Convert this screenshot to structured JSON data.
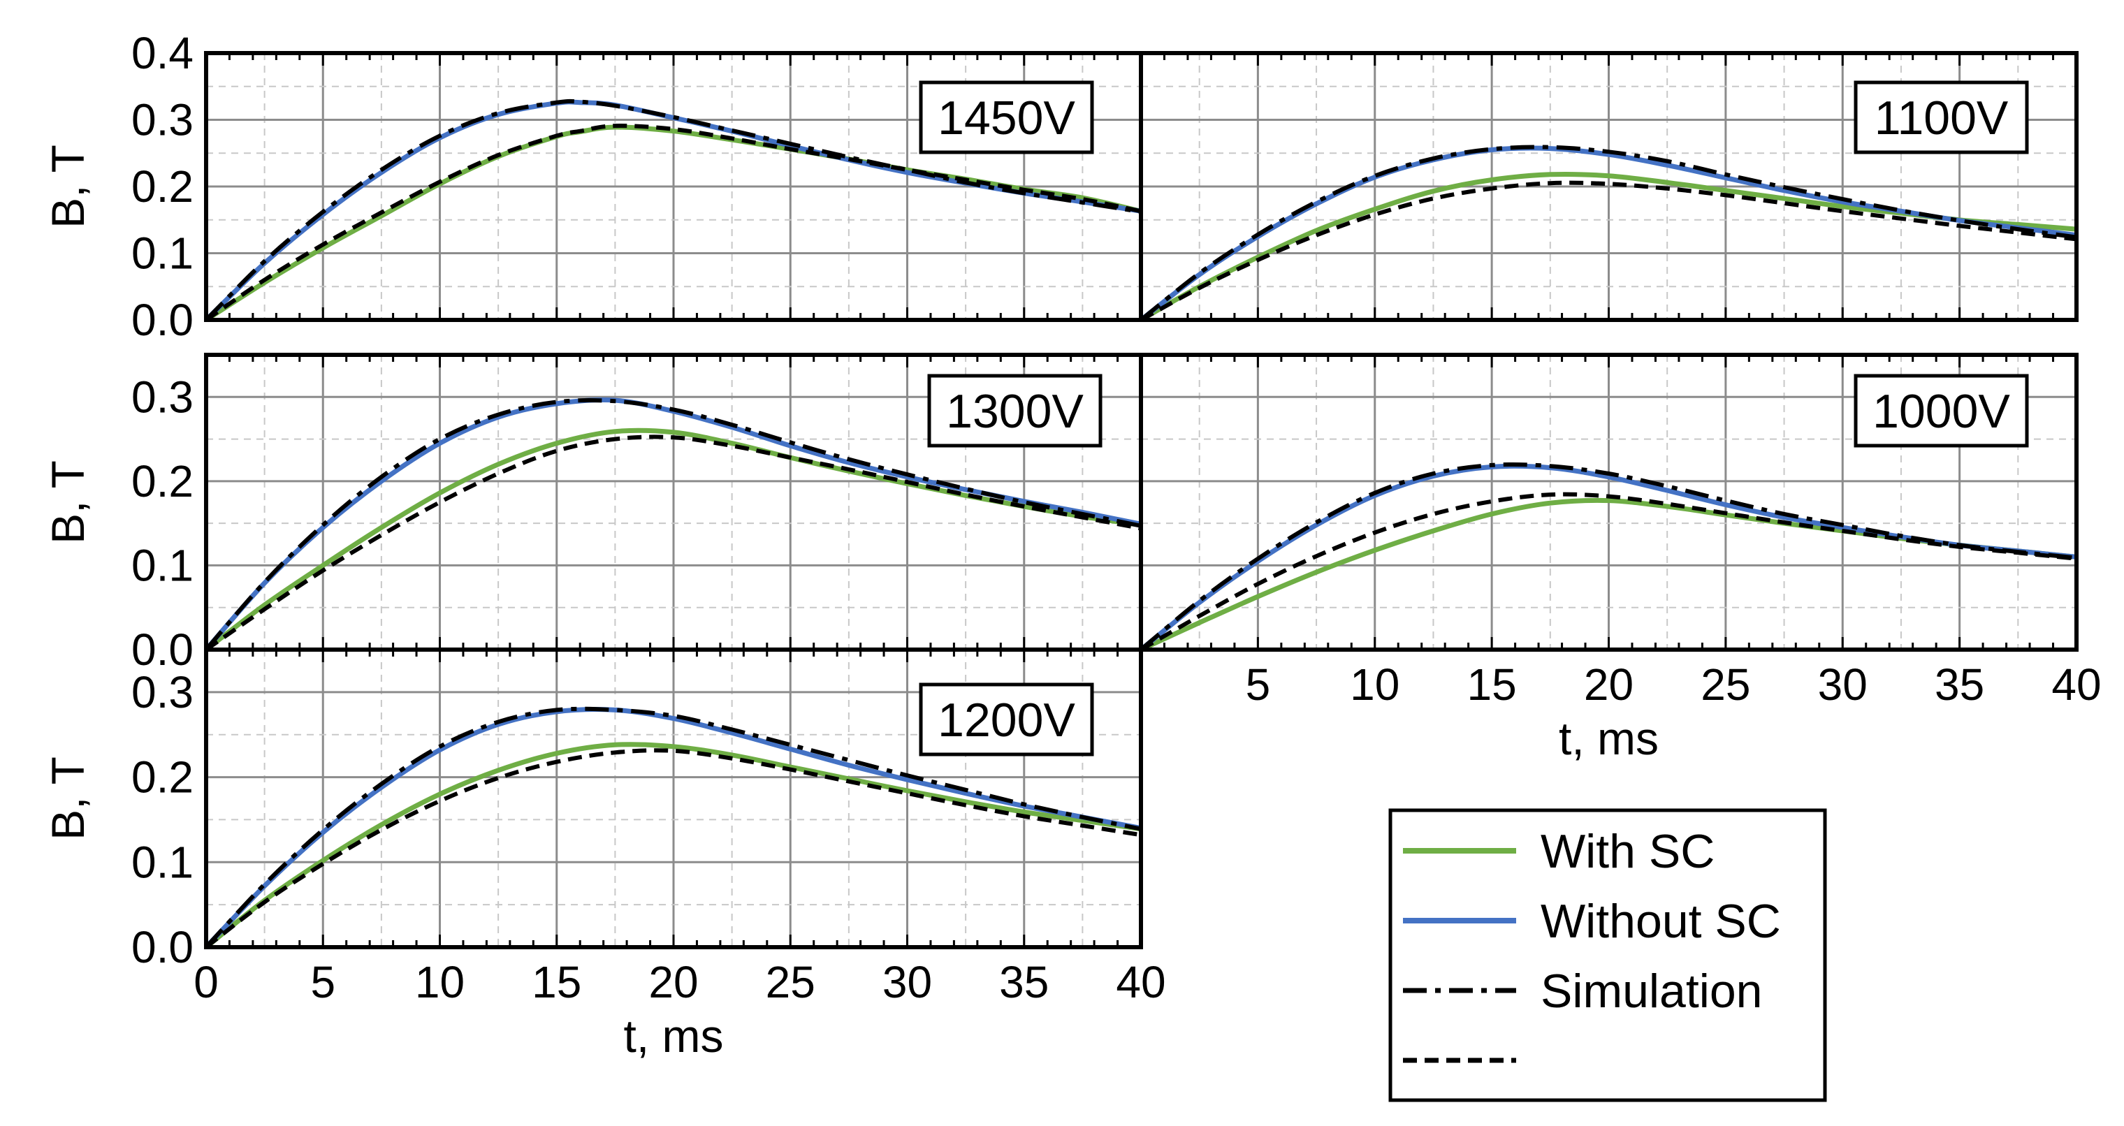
{
  "chart_data": [
    {
      "type": "line",
      "panel": "1450V",
      "label": "1450V",
      "xlabel": "",
      "ylabel": "B, T",
      "xlim": [
        0,
        40
      ],
      "ylim": [
        0,
        0.4
      ],
      "yticks": [
        "0.0",
        "0.1",
        "0.2",
        "0.3",
        "0.4"
      ],
      "xticks": [],
      "x": [
        0,
        2.5,
        5,
        7.5,
        10,
        12.5,
        15,
        16,
        17.5,
        20,
        22.5,
        25,
        27.5,
        30,
        32.5,
        35,
        37.5,
        40
      ],
      "series": [
        {
          "name": "With SC",
          "style": "green",
          "values": [
            0,
            0.056,
            0.108,
            0.156,
            0.204,
            0.245,
            0.275,
            0.282,
            0.289,
            0.283,
            0.27,
            0.256,
            0.241,
            0.225,
            0.211,
            0.196,
            0.183,
            0.163
          ]
        },
        {
          "name": "Without SC",
          "style": "blue",
          "values": [
            0,
            0.085,
            0.158,
            0.221,
            0.273,
            0.308,
            0.325,
            0.326,
            0.322,
            0.303,
            0.283,
            0.261,
            0.24,
            0.221,
            0.205,
            0.19,
            0.177,
            0.163
          ]
        },
        {
          "name": "Simulation",
          "style": "dashdot",
          "values": [
            0,
            0.088,
            0.162,
            0.225,
            0.276,
            0.31,
            0.326,
            0.327,
            0.321,
            0.304,
            0.284,
            0.264,
            0.244,
            0.225,
            0.206,
            0.19,
            0.176,
            0.162
          ]
        },
        {
          "name": "",
          "style": "dash",
          "values": [
            0,
            0.06,
            0.113,
            0.161,
            0.207,
            0.247,
            0.276,
            0.283,
            0.291,
            0.286,
            0.272,
            0.256,
            0.241,
            0.225,
            0.21,
            0.195,
            0.181,
            0.163
          ]
        }
      ]
    },
    {
      "type": "line",
      "panel": "1100V",
      "label": "1100V",
      "xlabel": "",
      "ylabel": "",
      "xlim": [
        0,
        40
      ],
      "ylim": [
        0,
        0.4
      ],
      "yticks": [],
      "xticks": [],
      "x": [
        0,
        2.5,
        5,
        7.5,
        10,
        12.5,
        15,
        17.5,
        20,
        22.5,
        25,
        27.5,
        30,
        32.5,
        35,
        37.5,
        40
      ],
      "series": [
        {
          "name": "With SC",
          "style": "green",
          "values": [
            0,
            0.05,
            0.094,
            0.134,
            0.166,
            0.193,
            0.21,
            0.218,
            0.216,
            0.206,
            0.194,
            0.182,
            0.17,
            0.16,
            0.15,
            0.143,
            0.136
          ]
        },
        {
          "name": "Without SC",
          "style": "blue",
          "values": [
            0,
            0.068,
            0.125,
            0.174,
            0.214,
            0.24,
            0.255,
            0.257,
            0.248,
            0.232,
            0.213,
            0.194,
            0.177,
            0.163,
            0.149,
            0.138,
            0.127
          ]
        },
        {
          "name": "Simulation",
          "style": "dashdot",
          "values": [
            0,
            0.07,
            0.128,
            0.177,
            0.216,
            0.242,
            0.256,
            0.259,
            0.252,
            0.238,
            0.218,
            0.199,
            0.181,
            0.164,
            0.149,
            0.136,
            0.124
          ]
        },
        {
          "name": "",
          "style": "dash",
          "values": [
            0,
            0.048,
            0.09,
            0.127,
            0.158,
            0.182,
            0.197,
            0.205,
            0.204,
            0.197,
            0.187,
            0.175,
            0.163,
            0.152,
            0.141,
            0.131,
            0.121
          ]
        }
      ]
    },
    {
      "type": "line",
      "panel": "1300V",
      "label": "1300V",
      "xlabel": "",
      "ylabel": "B, T",
      "xlim": [
        0,
        40
      ],
      "ylim": [
        0,
        0.35
      ],
      "yticks": [
        "0.0",
        "0.1",
        "0.2",
        "0.3"
      ],
      "xticks": [],
      "x": [
        0,
        2.5,
        5,
        7.5,
        10,
        12.5,
        15,
        17.5,
        20,
        22.5,
        25,
        27.5,
        30,
        32.5,
        35,
        37.5,
        40
      ],
      "series": [
        {
          "name": "With SC",
          "style": "green",
          "values": [
            0,
            0.053,
            0.1,
            0.145,
            0.186,
            0.22,
            0.245,
            0.259,
            0.258,
            0.245,
            0.228,
            0.212,
            0.197,
            0.183,
            0.17,
            0.158,
            0.148
          ]
        },
        {
          "name": "Without SC",
          "style": "blue",
          "values": [
            0,
            0.079,
            0.145,
            0.2,
            0.245,
            0.276,
            0.292,
            0.296,
            0.283,
            0.264,
            0.242,
            0.222,
            0.205,
            0.19,
            0.176,
            0.163,
            0.149
          ]
        },
        {
          "name": "Simulation",
          "style": "dashdot",
          "values": [
            0,
            0.08,
            0.148,
            0.205,
            0.25,
            0.279,
            0.294,
            0.295,
            0.285,
            0.267,
            0.246,
            0.226,
            0.208,
            0.191,
            0.175,
            0.161,
            0.147
          ]
        },
        {
          "name": "",
          "style": "dash",
          "values": [
            0,
            0.048,
            0.094,
            0.136,
            0.175,
            0.209,
            0.236,
            0.25,
            0.252,
            0.242,
            0.228,
            0.214,
            0.199,
            0.184,
            0.17,
            0.157,
            0.144
          ]
        }
      ]
    },
    {
      "type": "line",
      "panel": "1000V",
      "label": "1000V",
      "xlabel": "t, ms",
      "ylabel": "",
      "xlim": [
        0,
        40
      ],
      "ylim": [
        0,
        0.35
      ],
      "yticks": [],
      "xticks": [
        "5",
        "10",
        "15",
        "20",
        "25",
        "30",
        "35",
        "40"
      ],
      "x": [
        0,
        2.5,
        5,
        7.5,
        10,
        12.5,
        15,
        17.5,
        20,
        22.5,
        25,
        27.5,
        30,
        32.5,
        35,
        37.5,
        40
      ],
      "series": [
        {
          "name": "With SC",
          "style": "green",
          "values": [
            0,
            0.032,
            0.063,
            0.092,
            0.118,
            0.141,
            0.161,
            0.174,
            0.177,
            0.17,
            0.16,
            0.15,
            0.141,
            0.132,
            0.124,
            0.117,
            0.11
          ]
        },
        {
          "name": "Without SC",
          "style": "blue",
          "values": [
            0,
            0.056,
            0.105,
            0.148,
            0.183,
            0.206,
            0.217,
            0.216,
            0.205,
            0.189,
            0.172,
            0.157,
            0.145,
            0.134,
            0.124,
            0.117,
            0.11
          ]
        },
        {
          "name": "Simulation",
          "style": "dashdot",
          "values": [
            0,
            0.058,
            0.108,
            0.151,
            0.186,
            0.209,
            0.219,
            0.218,
            0.209,
            0.194,
            0.177,
            0.161,
            0.148,
            0.135,
            0.124,
            0.116,
            0.109
          ]
        },
        {
          "name": "",
          "style": "dash",
          "values": [
            0,
            0.04,
            0.078,
            0.111,
            0.139,
            0.161,
            0.176,
            0.184,
            0.182,
            0.173,
            0.162,
            0.151,
            0.141,
            0.131,
            0.122,
            0.115,
            0.108
          ]
        }
      ]
    },
    {
      "type": "line",
      "panel": "1200V",
      "label": "1200V",
      "xlabel": "t, ms",
      "ylabel": "B, T",
      "xlim": [
        0,
        40
      ],
      "ylim": [
        0,
        0.35
      ],
      "yticks": [
        "0.0",
        "0.1",
        "0.2",
        "0.3"
      ],
      "xticks": [
        "0",
        "5",
        "10",
        "15",
        "20",
        "25",
        "30",
        "35",
        "40"
      ],
      "x": [
        0,
        2.5,
        5,
        7.5,
        10,
        12.5,
        15,
        17.5,
        20,
        22.5,
        25,
        27.5,
        30,
        32.5,
        35,
        37.5,
        40
      ],
      "series": [
        {
          "name": "With SC",
          "style": "green",
          "values": [
            0,
            0.055,
            0.102,
            0.144,
            0.18,
            0.208,
            0.228,
            0.238,
            0.236,
            0.226,
            0.212,
            0.198,
            0.184,
            0.171,
            0.159,
            0.149,
            0.139
          ]
        },
        {
          "name": "Without SC",
          "style": "blue",
          "values": [
            0,
            0.072,
            0.135,
            0.188,
            0.232,
            0.262,
            0.277,
            0.279,
            0.269,
            0.252,
            0.233,
            0.214,
            0.197,
            0.181,
            0.166,
            0.153,
            0.14
          ]
        },
        {
          "name": "Simulation",
          "style": "dashdot",
          "values": [
            0,
            0.074,
            0.138,
            0.192,
            0.236,
            0.265,
            0.279,
            0.279,
            0.272,
            0.256,
            0.238,
            0.22,
            0.202,
            0.185,
            0.168,
            0.153,
            0.139
          ]
        },
        {
          "name": "",
          "style": "dash",
          "values": [
            0,
            0.053,
            0.098,
            0.138,
            0.172,
            0.199,
            0.218,
            0.229,
            0.231,
            0.222,
            0.209,
            0.195,
            0.181,
            0.167,
            0.154,
            0.143,
            0.132
          ]
        }
      ]
    }
  ],
  "legend": {
    "entries": [
      {
        "label": "With SC",
        "style": "green"
      },
      {
        "label": "Without SC",
        "style": "blue"
      },
      {
        "label": "Simulation",
        "style": "dashdot"
      },
      {
        "label": "",
        "style": "dash"
      }
    ]
  },
  "colors": {
    "with_sc": "#6fae45",
    "without_sc": "#4472c4",
    "simulation": "#000000",
    "grid_major": "#8c8c8c",
    "grid_minor": "#c8c8c8"
  }
}
